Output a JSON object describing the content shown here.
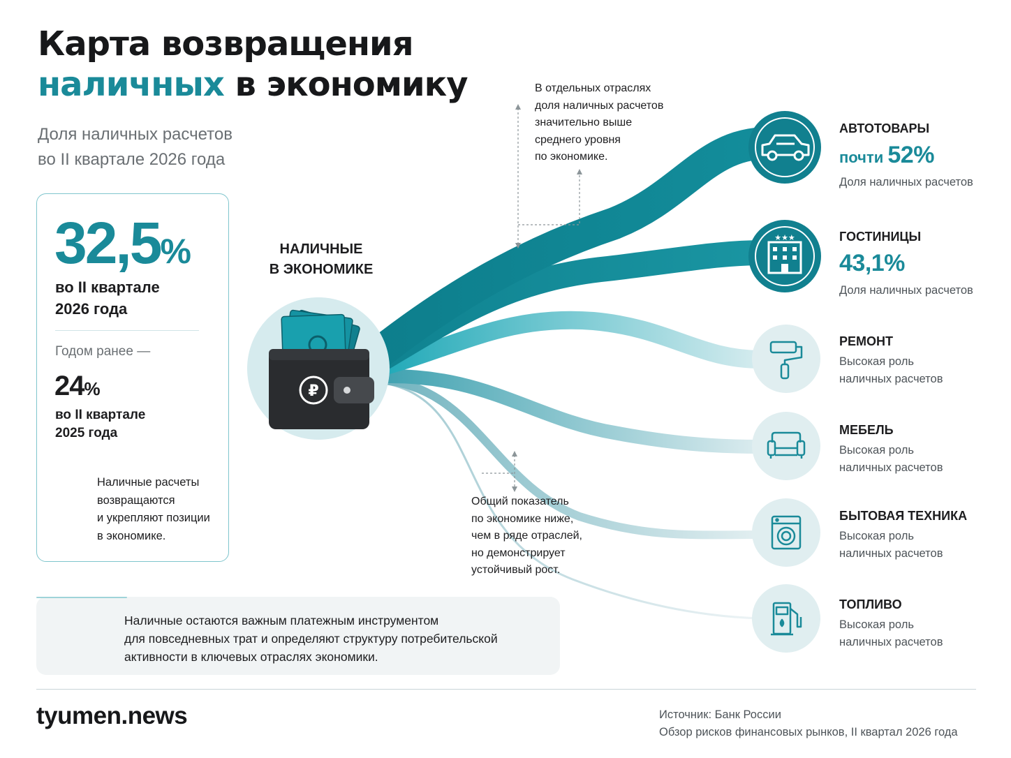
{
  "title": {
    "line1": "Карта возвращения",
    "accent": "наличных",
    "line2_rest": " в экономику"
  },
  "subtitle": {
    "line1": "Доля наличных расчетов",
    "line2": "во II квартале 2026 года"
  },
  "card": {
    "value": "32,5",
    "value_unit": "%",
    "period_line1": "во II квартале",
    "period_line2": "2026 года",
    "prev_label": "Годом ранее —",
    "prev_value": "24",
    "prev_unit": "%",
    "prev_period_line1": "во II квартале",
    "prev_period_line2": "2025 года",
    "trend_text": [
      "Наличные расчеты",
      "возвращаются",
      "и укрепляют позиции",
      "в экономике."
    ]
  },
  "center": {
    "label_line1": "НАЛИЧНЫЕ",
    "label_line2": "В ЭКОНОМИКЕ",
    "callout_top": [
      "В отдельных отраслях",
      "доля наличных расчетов",
      "значительно выше",
      "среднего уровня",
      "по экономике."
    ],
    "callout_bottom": [
      "Общий показатель",
      "по экономике ниже,",
      "чем в ряде отраслей,",
      "но демонстрирует",
      "устойчивый рост."
    ]
  },
  "categories": [
    {
      "name": "АВТОТОВАРЫ",
      "prefix": "почти ",
      "value": "52%",
      "desc": [
        "Доля наличных расчетов"
      ],
      "icon": "car-icon"
    },
    {
      "name": "ГОСТИНИЦЫ",
      "prefix": "",
      "value": "43,1%",
      "desc": [
        "Доля наличных расчетов"
      ],
      "icon": "hotel-icon"
    },
    {
      "name": "РЕМОНТ",
      "prefix": "",
      "value": "",
      "desc": [
        "Высокая роль",
        "наличных расчетов"
      ],
      "icon": "paint-roller-icon"
    },
    {
      "name": "МЕБЕЛЬ",
      "prefix": "",
      "value": "",
      "desc": [
        "Высокая роль",
        "наличных расчетов"
      ],
      "icon": "sofa-icon"
    },
    {
      "name": "БЫТОВАЯ ТЕХНИКА",
      "prefix": "",
      "value": "",
      "desc": [
        "Высокая роль",
        "наличных расчетов"
      ],
      "icon": "washing-machine-icon"
    },
    {
      "name": "ТОПЛИВО",
      "prefix": "",
      "value": "",
      "desc": [
        "Высокая роль",
        "наличных расчетов"
      ],
      "icon": "fuel-pump-icon"
    }
  ],
  "note": {
    "lines": [
      "Наличные остаются важным платежным инструментом",
      "для повседневных трат и определяют структуру потребительской",
      "активности в ключевых отраслях экономики."
    ]
  },
  "footer": {
    "logo": "tyumen.news",
    "source_line1": "Источник: Банк России",
    "source_line2": "Обзор рисков финансовых рынков, II квартал 2026 года"
  },
  "colors": {
    "accent": "#1a8a99",
    "accent_dark": "#11808f",
    "light_circle": "#dcecee"
  }
}
